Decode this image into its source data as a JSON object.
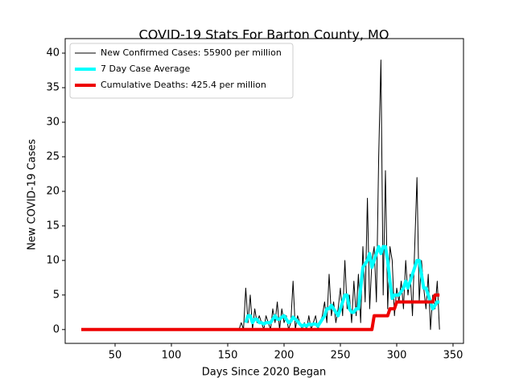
{
  "chart_data": {
    "type": "line",
    "title": "COVID-19 Stats For Barton County, MO",
    "xlabel": "Days Since 2020 Began",
    "ylabel": "New COVID-19 Cases",
    "x": [
      20,
      160,
      162,
      164,
      166,
      168,
      170,
      172,
      174,
      176,
      178,
      180,
      182,
      184,
      186,
      188,
      190,
      192,
      194,
      196,
      198,
      200,
      202,
      204,
      206,
      208,
      210,
      212,
      214,
      216,
      218,
      220,
      222,
      224,
      226,
      228,
      230,
      232,
      234,
      236,
      238,
      240,
      242,
      244,
      246,
      248,
      250,
      252,
      254,
      256,
      258,
      260,
      262,
      264,
      266,
      268,
      270,
      272,
      274,
      276,
      278,
      280,
      282,
      284,
      286,
      288,
      290,
      292,
      294,
      296,
      298,
      300,
      302,
      304,
      306,
      308,
      310,
      312,
      314,
      316,
      318,
      320,
      322,
      324,
      326,
      328,
      330,
      332,
      334,
      336,
      338
    ],
    "series": [
      {
        "name": "New Confirmed Cases: 55900 per million",
        "color": "#000000",
        "values": [
          null,
          0,
          1,
          0,
          6,
          1,
          5,
          0,
          3,
          1,
          2,
          1,
          0,
          2,
          1,
          0,
          3,
          1,
          4,
          0,
          3,
          1,
          2,
          0,
          1,
          7,
          0,
          2,
          1,
          0,
          1,
          0,
          2,
          0,
          1,
          2,
          0,
          1,
          2,
          4,
          1,
          8,
          2,
          4,
          1,
          3,
          6,
          2,
          10,
          3,
          5,
          1,
          7,
          2,
          8,
          1,
          12,
          4,
          19,
          3,
          10,
          12,
          4,
          25,
          39,
          5,
          23,
          3,
          12,
          10,
          2,
          6,
          4,
          7,
          3,
          10,
          5,
          8,
          2,
          12,
          22,
          4,
          10,
          6,
          3,
          8,
          0,
          5,
          3,
          7,
          0
        ]
      },
      {
        "name": "7 Day Case Average",
        "color": "#00ffff",
        "values": [
          null,
          null,
          null,
          null,
          1,
          2,
          2,
          1,
          1.5,
          1.5,
          1,
          1,
          0.8,
          1,
          1,
          1,
          1.5,
          2,
          1.5,
          1.5,
          1.8,
          2,
          1.5,
          1,
          1.2,
          1.8,
          1.5,
          1.2,
          0.8,
          0.5,
          0.7,
          0.5,
          0.8,
          0.7,
          0.8,
          0.8,
          0.5,
          1,
          1.5,
          2,
          3,
          3,
          3.5,
          3,
          2.5,
          2,
          3,
          4,
          5,
          5,
          3,
          2.5,
          2.5,
          3,
          3,
          6,
          9,
          9.5,
          10,
          11,
          9,
          10,
          11,
          12,
          11,
          12,
          12,
          10,
          7,
          4.5,
          5,
          5,
          5,
          5.5,
          6,
          7,
          6,
          7,
          8,
          9,
          10,
          10,
          8,
          6,
          6,
          5,
          4,
          3,
          3.5,
          4,
          4
        ]
      },
      {
        "name": "Cumulative Deaths: 425.4 per million",
        "color": "#ee0000",
        "values": [
          0,
          0,
          0,
          0,
          0,
          0,
          0,
          0,
          0,
          0,
          0,
          0,
          0,
          0,
          0,
          0,
          0,
          0,
          0,
          0,
          0,
          0,
          0,
          0,
          0,
          0,
          0,
          0,
          0,
          0,
          0,
          0,
          0,
          0,
          0,
          0,
          0,
          0,
          0,
          0,
          0,
          0,
          0,
          0,
          0,
          0,
          0,
          0,
          0,
          0,
          0,
          0,
          0,
          0,
          0,
          0,
          0,
          0,
          0,
          0,
          0,
          2,
          2,
          2,
          2,
          2,
          2,
          2,
          3,
          3,
          3,
          4,
          4,
          4,
          4,
          4,
          4,
          4,
          4,
          4,
          4,
          4,
          4,
          4,
          4,
          4,
          4,
          4,
          5,
          5,
          5
        ]
      }
    ],
    "xlim": [
      5.7,
      359.3
    ],
    "xticks": [
      50,
      100,
      150,
      200,
      250,
      300,
      350
    ],
    "ylim": [
      -2,
      42.1
    ],
    "yticks": [
      0,
      5,
      10,
      15,
      20,
      25,
      30,
      35,
      40
    ],
    "legend": "upper left"
  }
}
